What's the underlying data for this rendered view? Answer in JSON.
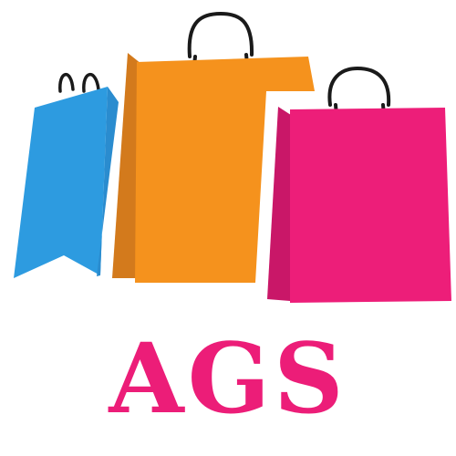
{
  "brand": {
    "name": "AGS"
  },
  "colors": {
    "blue_bag": "#2d9be0",
    "blue_bag_side": "#2a8ccf",
    "orange_bag": "#f5921d",
    "orange_bag_side": "#d37a1c",
    "pink_bag": "#ed1e79",
    "pink_bag_side": "#c91768",
    "handle": "#1a1a1a",
    "brand_text": "#ec1d78"
  },
  "icons": [
    "blue-shopping-bag-icon",
    "orange-shopping-bag-icon",
    "pink-shopping-bag-icon"
  ]
}
